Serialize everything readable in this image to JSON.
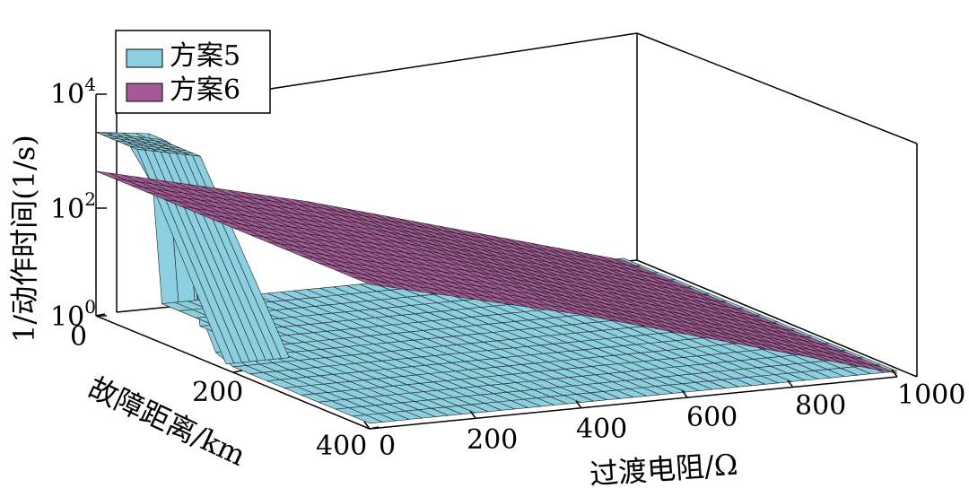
{
  "chart_data": {
    "type": "surface3d",
    "xlabel": "过渡电阻/Ω",
    "ylabel": "故障距离/km",
    "zlabel": "1/动作时间(1/s)",
    "x_ticks": [
      "0",
      "200",
      "400",
      "600",
      "800",
      "1000"
    ],
    "y_ticks": [
      "0",
      "200",
      "400"
    ],
    "z_ticks": [
      {
        "base": "10",
        "exp": "0"
      },
      {
        "base": "10",
        "exp": "2"
      },
      {
        "base": "10",
        "exp": "4"
      }
    ],
    "xlim": [
      0,
      1000
    ],
    "ylim": [
      0,
      400
    ],
    "zlim_log10": [
      0,
      4
    ],
    "z_scale": "log",
    "legend_position": "top-left",
    "series": [
      {
        "name": "方案5",
        "color": "#8ccfe0",
        "description_points": [
          {
            "x": 0,
            "y": 0,
            "z_log10": 3.3
          },
          {
            "x": 0,
            "y": 120,
            "z_log10": 3.3
          },
          {
            "x": 0,
            "y": 180,
            "z_log10": 0.1
          },
          {
            "x": 0,
            "y": 400,
            "z_log10": 0.1
          },
          {
            "x": 1000,
            "y": 0,
            "z_log10": 0.1
          },
          {
            "x": 1000,
            "y": 400,
            "z_log10": 0.1
          }
        ]
      },
      {
        "name": "方案6",
        "color": "#a55a97",
        "description_points": [
          {
            "x": 0,
            "y": 0,
            "z_log10": 2.6
          },
          {
            "x": 0,
            "y": 400,
            "z_log10": 2.6
          },
          {
            "x": 400,
            "y": 0,
            "z_log10": 2.0
          },
          {
            "x": 1000,
            "y": 0,
            "z_log10": 0.3
          },
          {
            "x": 1000,
            "y": 400,
            "z_log10": 0.3
          }
        ]
      }
    ]
  },
  "legend": {
    "items": [
      {
        "label": "方案5",
        "color": "#8ccfe0"
      },
      {
        "label": "方案6",
        "color": "#a55a97"
      }
    ]
  }
}
